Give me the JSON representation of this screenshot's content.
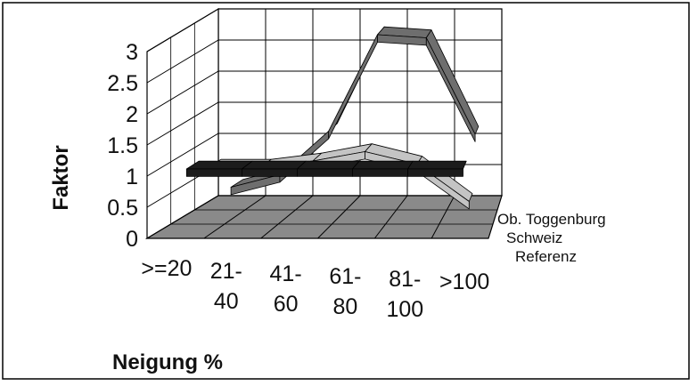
{
  "chart_data": {
    "type": "line",
    "style": "3d-ribbon",
    "title": "",
    "xlabel": "Neigung %",
    "ylabel": "Faktor",
    "ylim": [
      0,
      3
    ],
    "yticks": [
      "0",
      "0.5",
      "1",
      "1.5",
      "2",
      "2.5",
      "3"
    ],
    "categories": [
      [
        ">=20"
      ],
      [
        "21-",
        "40"
      ],
      [
        "41-",
        "60"
      ],
      [
        "61-",
        "80"
      ],
      [
        "81-",
        "100"
      ],
      [
        ">100"
      ]
    ],
    "series": [
      {
        "name": "Referenz",
        "values": [
          1,
          1,
          1,
          1,
          1,
          1
        ],
        "color": "#1c1c1c"
      },
      {
        "name": "Schweiz",
        "values": [
          0.8,
          0.8,
          0.9,
          1.05,
          0.85,
          0.25
        ],
        "color": "#c4c4c4"
      },
      {
        "name": "Ob. Toggenburg",
        "values": [
          0.25,
          0.45,
          1.15,
          2.7,
          2.65,
          1.1
        ],
        "color": "#6e6e6e"
      }
    ],
    "grid": true,
    "legend": "right"
  }
}
